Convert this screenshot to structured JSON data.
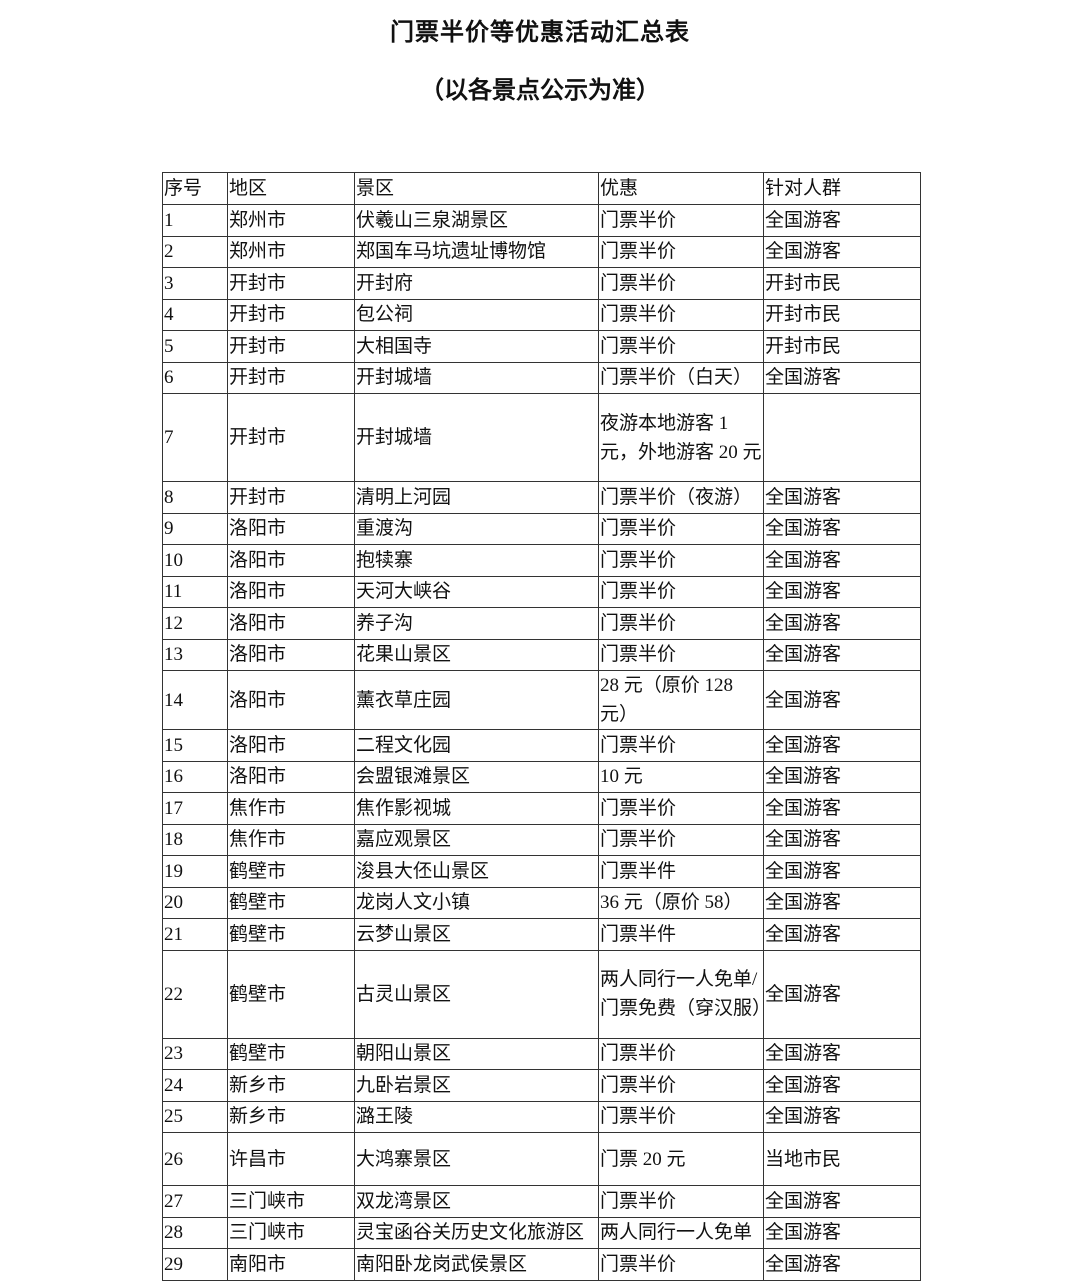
{
  "header": {
    "title": "门票半价等优惠活动汇总表",
    "subtitle": "（以各景点公示为准）"
  },
  "table": {
    "columns": [
      "序号",
      "地区",
      "景区",
      "优惠",
      "针对人群"
    ],
    "rows": [
      [
        "1",
        "郑州市",
        "伏羲山三泉湖景区",
        "门票半价",
        "全国游客"
      ],
      [
        "2",
        "郑州市",
        "郑国车马坑遗址博物馆",
        "门票半价",
        "全国游客"
      ],
      [
        "3",
        "开封市",
        "开封府",
        "门票半价",
        "开封市民"
      ],
      [
        "4",
        "开封市",
        "包公祠",
        "门票半价",
        "开封市民"
      ],
      [
        "5",
        "开封市",
        "大相国寺",
        "门票半价",
        "开封市民"
      ],
      [
        "6",
        "开封市",
        "开封城墙",
        "门票半价（白天）",
        "全国游客"
      ],
      [
        "7",
        "开封市",
        "开封城墙",
        "夜游本地游客 1 元，外地游客 20 元",
        null
      ],
      [
        "8",
        "开封市",
        "清明上河园",
        "门票半价（夜游）",
        "全国游客"
      ],
      [
        "9",
        "洛阳市",
        "重渡沟",
        "门票半价",
        "全国游客"
      ],
      [
        "10",
        "洛阳市",
        "抱犊寨",
        "门票半价",
        "全国游客"
      ],
      [
        "11",
        "洛阳市",
        "天河大峡谷",
        "门票半价",
        "全国游客"
      ],
      [
        "12",
        "洛阳市",
        "养子沟",
        "门票半价",
        "全国游客"
      ],
      [
        "13",
        "洛阳市",
        "花果山景区",
        "门票半价",
        "全国游客"
      ],
      [
        "14",
        "洛阳市",
        "薰衣草庄园",
        "28 元（原价 128 元）",
        "全国游客"
      ],
      [
        "15",
        "洛阳市",
        "二程文化园",
        "门票半价",
        "全国游客"
      ],
      [
        "16",
        "洛阳市",
        "会盟银滩景区",
        "10 元",
        "全国游客"
      ],
      [
        "17",
        "焦作市",
        "焦作影视城",
        "门票半价",
        "全国游客"
      ],
      [
        "18",
        "焦作市",
        "嘉应观景区",
        "门票半价",
        "全国游客"
      ],
      [
        "19",
        "鹤壁市",
        "浚县大伾山景区",
        "门票半件",
        "全国游客"
      ],
      [
        "20",
        "鹤壁市",
        "龙岗人文小镇",
        "36 元（原价 58）",
        "全国游客"
      ],
      [
        "21",
        "鹤壁市",
        "云梦山景区",
        "门票半件",
        "全国游客"
      ],
      [
        "22",
        "鹤壁市",
        "古灵山景区",
        "两人同行一人免单/门票免费（穿汉服）",
        "全国游客"
      ],
      [
        "23",
        "鹤壁市",
        "朝阳山景区",
        "门票半价",
        "全国游客"
      ],
      [
        "24",
        "新乡市",
        "九卧岩景区",
        "门票半价",
        "全国游客"
      ],
      [
        "25",
        "新乡市",
        "潞王陵",
        "门票半价",
        "全国游客"
      ],
      [
        "26",
        "许昌市",
        "大鸿寨景区",
        "门票 20 元",
        "当地市民"
      ],
      [
        "27",
        "三门峡市",
        "双龙湾景区",
        "门票半价",
        "全国游客"
      ],
      [
        "28",
        "三门峡市",
        "灵宝函谷关历史文化旅游区",
        "两人同行一人免单",
        "全国游客"
      ],
      [
        "29",
        "南阳市",
        "南阳卧龙岗武侯景区",
        "门票半价",
        "全国游客"
      ]
    ]
  }
}
